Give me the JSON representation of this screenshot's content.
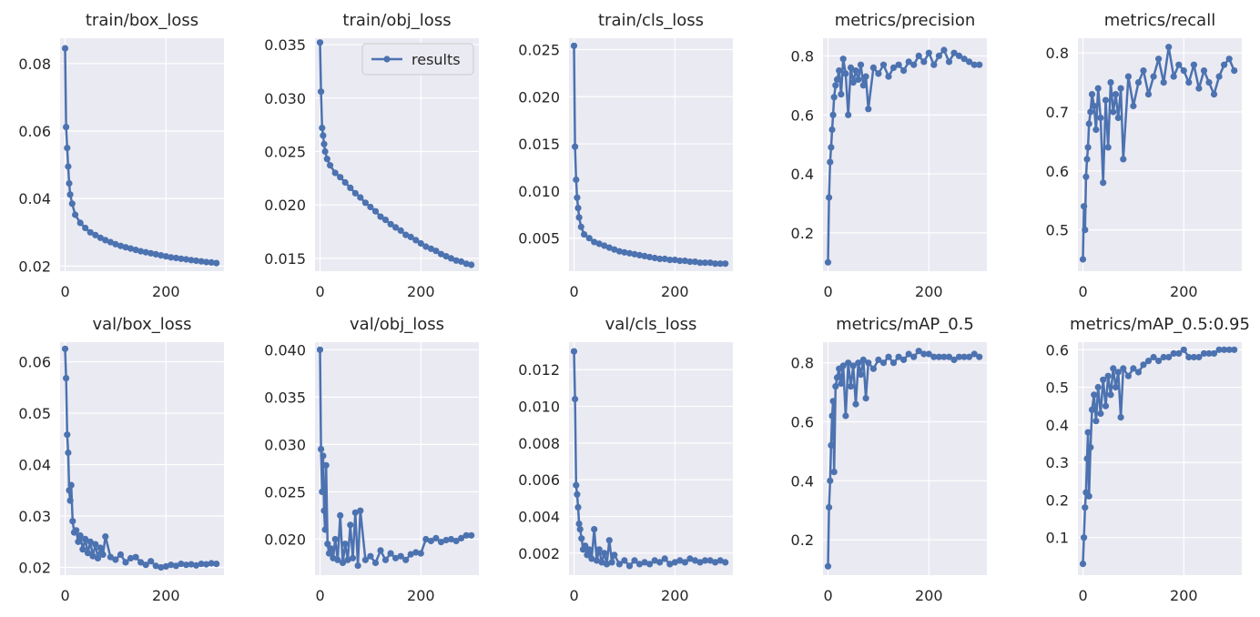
{
  "figure": {
    "legend_label": "results",
    "colors": {
      "series": "#4c72b0",
      "panel_bg": "#eaeaf2",
      "grid": "#ffffff",
      "text": "#262626"
    }
  },
  "chart_data": [
    {
      "type": "line",
      "title": "train/box_loss",
      "xlim": [
        -10,
        315
      ],
      "ylim": [
        0.0185,
        0.0875
      ],
      "xticks": [
        0,
        200
      ],
      "xtick_labels": [
        "0",
        "200"
      ],
      "yticks": [
        0.02,
        0.04,
        0.06,
        0.08
      ],
      "ytick_labels": [
        "0.02",
        "0.04",
        "0.06",
        "0.08"
      ],
      "grid": true,
      "legend": null,
      "x": [
        0,
        2,
        4,
        6,
        8,
        10,
        14,
        20,
        30,
        40,
        50,
        60,
        70,
        80,
        90,
        100,
        110,
        120,
        130,
        140,
        150,
        160,
        170,
        180,
        190,
        200,
        210,
        220,
        230,
        240,
        250,
        260,
        270,
        280,
        290,
        300
      ],
      "values": [
        0.0845,
        0.0612,
        0.055,
        0.0495,
        0.0445,
        0.0412,
        0.0385,
        0.0352,
        0.0328,
        0.0313,
        0.03,
        0.0292,
        0.0284,
        0.0277,
        0.0271,
        0.0265,
        0.026,
        0.0256,
        0.0252,
        0.0248,
        0.0244,
        0.0241,
        0.0238,
        0.0235,
        0.0232,
        0.0229,
        0.0226,
        0.0224,
        0.0222,
        0.022,
        0.0218,
        0.0216,
        0.0214,
        0.0212,
        0.0211,
        0.0209
      ]
    },
    {
      "type": "line",
      "title": "train/obj_loss",
      "xlim": [
        -10,
        315
      ],
      "ylim": [
        0.0138,
        0.0356
      ],
      "xticks": [
        0,
        200
      ],
      "xtick_labels": [
        "0",
        "200"
      ],
      "yticks": [
        0.015,
        0.02,
        0.025,
        0.03,
        0.035
      ],
      "ytick_labels": [
        "0.015",
        "0.020",
        "0.025",
        "0.030",
        "0.035"
      ],
      "grid": true,
      "legend": "top-right",
      "x": [
        0,
        2,
        4,
        6,
        8,
        10,
        14,
        20,
        30,
        40,
        50,
        60,
        70,
        80,
        90,
        100,
        110,
        120,
        130,
        140,
        150,
        160,
        170,
        180,
        190,
        200,
        210,
        220,
        230,
        240,
        250,
        260,
        270,
        280,
        290,
        300
      ],
      "values": [
        0.0352,
        0.0306,
        0.0272,
        0.0265,
        0.0257,
        0.025,
        0.0243,
        0.0237,
        0.023,
        0.0226,
        0.0221,
        0.0216,
        0.0211,
        0.0207,
        0.0202,
        0.0198,
        0.0194,
        0.0189,
        0.0186,
        0.0182,
        0.0179,
        0.0176,
        0.0172,
        0.017,
        0.0167,
        0.0164,
        0.0161,
        0.0159,
        0.0157,
        0.0154,
        0.0152,
        0.015,
        0.0148,
        0.0147,
        0.0145,
        0.0144
      ]
    },
    {
      "type": "line",
      "title": "train/cls_loss",
      "xlim": [
        -10,
        315
      ],
      "ylim": [
        0.0015,
        0.0262
      ],
      "xticks": [
        0,
        200
      ],
      "xtick_labels": [
        "0",
        "200"
      ],
      "yticks": [
        0.005,
        0.01,
        0.015,
        0.02,
        0.025
      ],
      "ytick_labels": [
        "0.005",
        "0.010",
        "0.015",
        "0.020",
        "0.025"
      ],
      "grid": true,
      "legend": null,
      "x": [
        0,
        2,
        4,
        6,
        8,
        10,
        14,
        20,
        30,
        40,
        50,
        60,
        70,
        80,
        90,
        100,
        110,
        120,
        130,
        140,
        150,
        160,
        170,
        180,
        190,
        200,
        210,
        220,
        230,
        240,
        250,
        260,
        270,
        280,
        290,
        300
      ],
      "values": [
        0.0254,
        0.0147,
        0.0112,
        0.0093,
        0.0082,
        0.0072,
        0.0062,
        0.0054,
        0.005,
        0.0046,
        0.0044,
        0.0042,
        0.004,
        0.0038,
        0.0036,
        0.0035,
        0.0034,
        0.0033,
        0.0032,
        0.0031,
        0.003,
        0.0029,
        0.0028,
        0.0028,
        0.0027,
        0.0027,
        0.0026,
        0.0026,
        0.0025,
        0.0025,
        0.0024,
        0.0024,
        0.0024,
        0.0023,
        0.0023,
        0.0023
      ]
    },
    {
      "type": "line",
      "title": "metrics/precision",
      "xlim": [
        -10,
        315
      ],
      "ylim": [
        0.07,
        0.86
      ],
      "xticks": [
        0,
        200
      ],
      "xtick_labels": [
        "0",
        "200"
      ],
      "yticks": [
        0.2,
        0.4,
        0.6,
        0.8
      ],
      "ytick_labels": [
        "0.2",
        "0.4",
        "0.6",
        "0.8"
      ],
      "grid": true,
      "legend": null,
      "x": [
        0,
        2,
        4,
        6,
        8,
        10,
        12,
        15,
        18,
        22,
        26,
        30,
        35,
        40,
        45,
        50,
        55,
        60,
        65,
        70,
        75,
        80,
        90,
        100,
        110,
        120,
        130,
        140,
        150,
        160,
        170,
        180,
        190,
        200,
        210,
        220,
        230,
        240,
        250,
        260,
        270,
        280,
        290,
        300
      ],
      "values": [
        0.1,
        0.32,
        0.44,
        0.49,
        0.55,
        0.6,
        0.66,
        0.7,
        0.72,
        0.75,
        0.67,
        0.79,
        0.74,
        0.6,
        0.76,
        0.71,
        0.75,
        0.72,
        0.77,
        0.7,
        0.73,
        0.62,
        0.76,
        0.74,
        0.77,
        0.73,
        0.76,
        0.77,
        0.75,
        0.78,
        0.77,
        0.8,
        0.78,
        0.81,
        0.77,
        0.8,
        0.82,
        0.78,
        0.81,
        0.8,
        0.79,
        0.78,
        0.77,
        0.77
      ]
    },
    {
      "type": "line",
      "title": "metrics/recall",
      "xlim": [
        -10,
        315
      ],
      "ylim": [
        0.43,
        0.825
      ],
      "xticks": [
        0,
        200
      ],
      "xtick_labels": [
        "0",
        "200"
      ],
      "yticks": [
        0.5,
        0.6,
        0.7,
        0.8
      ],
      "ytick_labels": [
        "0.5",
        "0.6",
        "0.7",
        "0.8"
      ],
      "grid": true,
      "legend": null,
      "x": [
        0,
        2,
        4,
        6,
        8,
        10,
        12,
        15,
        18,
        22,
        26,
        30,
        35,
        40,
        45,
        50,
        55,
        60,
        65,
        70,
        75,
        80,
        90,
        100,
        110,
        120,
        130,
        140,
        150,
        160,
        170,
        180,
        190,
        200,
        210,
        220,
        230,
        240,
        250,
        260,
        270,
        280,
        290,
        300
      ],
      "values": [
        0.45,
        0.54,
        0.5,
        0.59,
        0.62,
        0.64,
        0.68,
        0.7,
        0.73,
        0.71,
        0.67,
        0.74,
        0.69,
        0.58,
        0.72,
        0.64,
        0.75,
        0.7,
        0.73,
        0.69,
        0.74,
        0.62,
        0.76,
        0.71,
        0.75,
        0.77,
        0.73,
        0.76,
        0.79,
        0.75,
        0.81,
        0.76,
        0.78,
        0.77,
        0.75,
        0.78,
        0.74,
        0.77,
        0.75,
        0.73,
        0.76,
        0.78,
        0.79,
        0.77
      ]
    },
    {
      "type": "line",
      "title": "val/box_loss",
      "xlim": [
        -10,
        315
      ],
      "ylim": [
        0.0185,
        0.0638
      ],
      "xticks": [
        0,
        200
      ],
      "xtick_labels": [
        "0",
        "200"
      ],
      "yticks": [
        0.02,
        0.03,
        0.04,
        0.05,
        0.06
      ],
      "ytick_labels": [
        "0.02",
        "0.03",
        "0.04",
        "0.05",
        "0.06"
      ],
      "grid": true,
      "legend": null,
      "x": [
        0,
        2,
        4,
        6,
        8,
        10,
        12,
        15,
        18,
        22,
        26,
        30,
        35,
        40,
        45,
        50,
        55,
        60,
        65,
        70,
        75,
        80,
        90,
        100,
        110,
        120,
        130,
        140,
        150,
        160,
        170,
        180,
        190,
        200,
        210,
        220,
        230,
        240,
        250,
        260,
        270,
        280,
        290,
        300
      ],
      "values": [
        0.0625,
        0.0568,
        0.0458,
        0.0423,
        0.035,
        0.033,
        0.036,
        0.029,
        0.0268,
        0.0272,
        0.025,
        0.0262,
        0.0235,
        0.0255,
        0.0228,
        0.025,
        0.0222,
        0.0245,
        0.0218,
        0.0238,
        0.0225,
        0.026,
        0.022,
        0.0215,
        0.0225,
        0.021,
        0.0218,
        0.022,
        0.021,
        0.0205,
        0.0212,
        0.0203,
        0.02,
        0.0202,
        0.0205,
        0.0203,
        0.0207,
        0.0205,
        0.0206,
        0.0204,
        0.0207,
        0.0206,
        0.0208,
        0.0207
      ]
    },
    {
      "type": "line",
      "title": "val/obj_loss",
      "xlim": [
        -10,
        315
      ],
      "ylim": [
        0.0162,
        0.0408
      ],
      "xticks": [
        0,
        200
      ],
      "xtick_labels": [
        "0",
        "200"
      ],
      "yticks": [
        0.02,
        0.025,
        0.03,
        0.035,
        0.04
      ],
      "ytick_labels": [
        "0.020",
        "0.025",
        "0.030",
        "0.035",
        "0.040"
      ],
      "grid": true,
      "legend": null,
      "x": [
        0,
        2,
        4,
        6,
        8,
        10,
        12,
        15,
        18,
        22,
        26,
        30,
        35,
        40,
        45,
        50,
        55,
        60,
        65,
        70,
        75,
        80,
        90,
        100,
        110,
        120,
        130,
        140,
        150,
        160,
        170,
        180,
        190,
        200,
        210,
        220,
        230,
        240,
        250,
        260,
        270,
        280,
        290,
        300
      ],
      "values": [
        0.04,
        0.0295,
        0.025,
        0.0288,
        0.023,
        0.021,
        0.0278,
        0.0195,
        0.0185,
        0.019,
        0.018,
        0.02,
        0.0178,
        0.0225,
        0.0175,
        0.0195,
        0.0178,
        0.0215,
        0.018,
        0.0228,
        0.0172,
        0.023,
        0.0178,
        0.0182,
        0.0175,
        0.0188,
        0.0178,
        0.0185,
        0.018,
        0.0182,
        0.0178,
        0.0184,
        0.0186,
        0.0185,
        0.02,
        0.0198,
        0.0201,
        0.0197,
        0.0199,
        0.02,
        0.0198,
        0.0201,
        0.0204,
        0.0204
      ]
    },
    {
      "type": "line",
      "title": "val/cls_loss",
      "xlim": [
        -10,
        315
      ],
      "ylim": [
        0.0008,
        0.0135
      ],
      "xticks": [
        0,
        200
      ],
      "xtick_labels": [
        "0",
        "200"
      ],
      "yticks": [
        0.002,
        0.004,
        0.006,
        0.008,
        0.01,
        0.012
      ],
      "ytick_labels": [
        "0.002",
        "0.004",
        "0.006",
        "0.008",
        "0.010",
        "0.012"
      ],
      "grid": true,
      "legend": null,
      "x": [
        0,
        2,
        4,
        6,
        8,
        10,
        12,
        15,
        18,
        22,
        26,
        30,
        35,
        40,
        45,
        50,
        55,
        60,
        65,
        70,
        75,
        80,
        90,
        100,
        110,
        120,
        130,
        140,
        150,
        160,
        170,
        180,
        190,
        200,
        210,
        220,
        230,
        240,
        250,
        260,
        270,
        280,
        290,
        300
      ],
      "values": [
        0.013,
        0.0104,
        0.0057,
        0.0052,
        0.0045,
        0.0036,
        0.0033,
        0.0028,
        0.0022,
        0.0024,
        0.0019,
        0.0022,
        0.0017,
        0.0033,
        0.0016,
        0.0022,
        0.0015,
        0.002,
        0.0014,
        0.0027,
        0.0015,
        0.0019,
        0.0014,
        0.0016,
        0.0013,
        0.0016,
        0.0014,
        0.0015,
        0.0014,
        0.0016,
        0.0015,
        0.0017,
        0.0014,
        0.0015,
        0.0016,
        0.0015,
        0.0017,
        0.0016,
        0.0015,
        0.0016,
        0.0016,
        0.0015,
        0.0016,
        0.0015
      ]
    },
    {
      "type": "line",
      "title": "metrics/mAP_0.5",
      "xlim": [
        -10,
        315
      ],
      "ylim": [
        0.08,
        0.87
      ],
      "xticks": [
        0,
        200
      ],
      "xtick_labels": [
        "0",
        "200"
      ],
      "yticks": [
        0.2,
        0.4,
        0.6,
        0.8
      ],
      "ytick_labels": [
        "0.2",
        "0.4",
        "0.6",
        "0.8"
      ],
      "grid": true,
      "legend": null,
      "x": [
        0,
        2,
        4,
        6,
        8,
        10,
        12,
        15,
        18,
        22,
        26,
        30,
        35,
        40,
        45,
        50,
        55,
        60,
        65,
        70,
        75,
        80,
        90,
        100,
        110,
        120,
        130,
        140,
        150,
        160,
        170,
        180,
        190,
        200,
        210,
        220,
        230,
        240,
        250,
        260,
        270,
        280,
        290,
        300
      ],
      "values": [
        0.11,
        0.31,
        0.4,
        0.52,
        0.62,
        0.67,
        0.43,
        0.72,
        0.75,
        0.78,
        0.73,
        0.79,
        0.62,
        0.8,
        0.72,
        0.79,
        0.66,
        0.8,
        0.76,
        0.81,
        0.68,
        0.8,
        0.78,
        0.81,
        0.8,
        0.82,
        0.8,
        0.82,
        0.81,
        0.83,
        0.82,
        0.84,
        0.83,
        0.83,
        0.82,
        0.82,
        0.82,
        0.82,
        0.81,
        0.82,
        0.82,
        0.82,
        0.83,
        0.82
      ]
    },
    {
      "type": "line",
      "title": "metrics/mAP_0.5:0.95",
      "xlim": [
        -10,
        315
      ],
      "ylim": [
        0.0,
        0.62
      ],
      "xticks": [
        0,
        200
      ],
      "xtick_labels": [
        "0",
        "200"
      ],
      "yticks": [
        0.1,
        0.2,
        0.3,
        0.4,
        0.5,
        0.6
      ],
      "ytick_labels": [
        "0.1",
        "0.2",
        "0.3",
        "0.4",
        "0.5",
        "0.6"
      ],
      "grid": true,
      "legend": null,
      "x": [
        0,
        2,
        4,
        6,
        8,
        10,
        12,
        15,
        18,
        22,
        26,
        30,
        35,
        40,
        45,
        50,
        55,
        60,
        65,
        70,
        75,
        80,
        90,
        100,
        110,
        120,
        130,
        140,
        150,
        160,
        170,
        180,
        190,
        200,
        210,
        220,
        230,
        240,
        250,
        260,
        270,
        280,
        290,
        300
      ],
      "values": [
        0.03,
        0.1,
        0.18,
        0.22,
        0.31,
        0.38,
        0.21,
        0.34,
        0.44,
        0.48,
        0.41,
        0.5,
        0.43,
        0.52,
        0.45,
        0.53,
        0.48,
        0.55,
        0.5,
        0.54,
        0.42,
        0.55,
        0.53,
        0.55,
        0.54,
        0.56,
        0.57,
        0.58,
        0.57,
        0.58,
        0.58,
        0.59,
        0.59,
        0.6,
        0.58,
        0.58,
        0.58,
        0.59,
        0.59,
        0.59,
        0.6,
        0.6,
        0.6,
        0.6
      ]
    }
  ]
}
